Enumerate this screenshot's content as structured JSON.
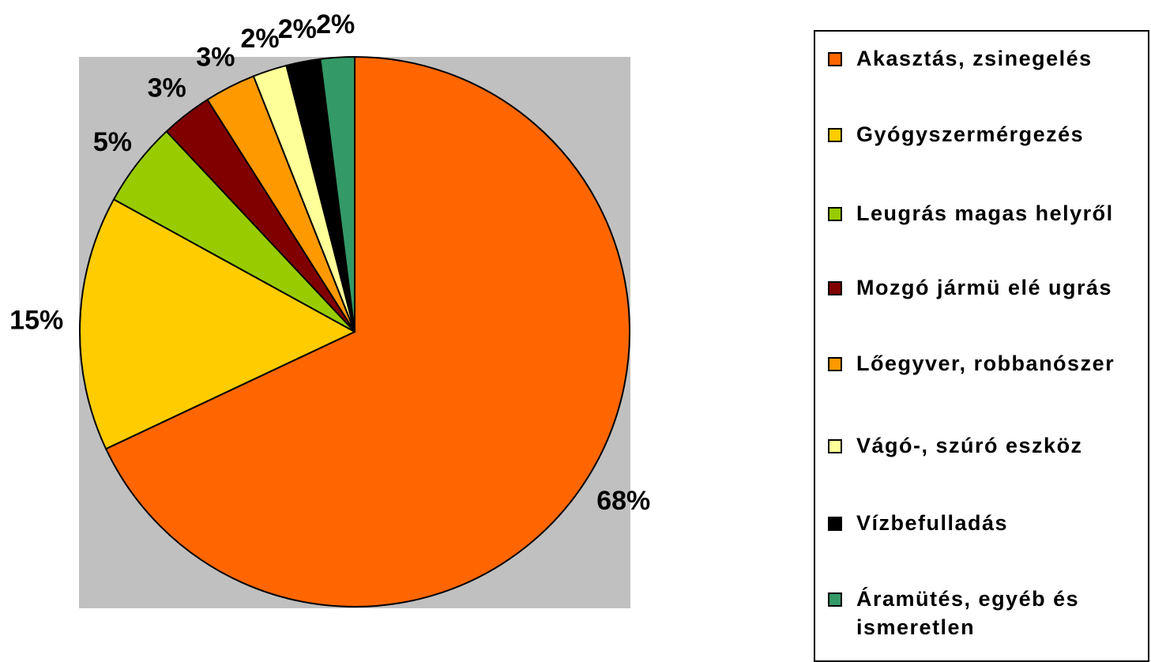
{
  "chart_data": {
    "type": "pie",
    "categories": [
      "Akasztás, zsinegelés",
      "Gyógyszermérgezés",
      "Leugrás magas helyről",
      "Mozgó jármü elé ugrás",
      "Lőegyver, robbanószer",
      "Vágó-, szúró eszköz",
      "Vízbefulladás",
      "Áramütés, egyéb és ismeretlen"
    ],
    "values": [
      68,
      15,
      5,
      3,
      3,
      2,
      2,
      2
    ],
    "value_labels": [
      "68%",
      "15%",
      "5%",
      "3%",
      "3%",
      "2%",
      "2%",
      "2%"
    ],
    "colors": [
      "#ff6600",
      "#ffcc00",
      "#99cc00",
      "#800000",
      "#ff9900",
      "#ffff99",
      "#000000",
      "#339966"
    ],
    "legend": "right"
  }
}
